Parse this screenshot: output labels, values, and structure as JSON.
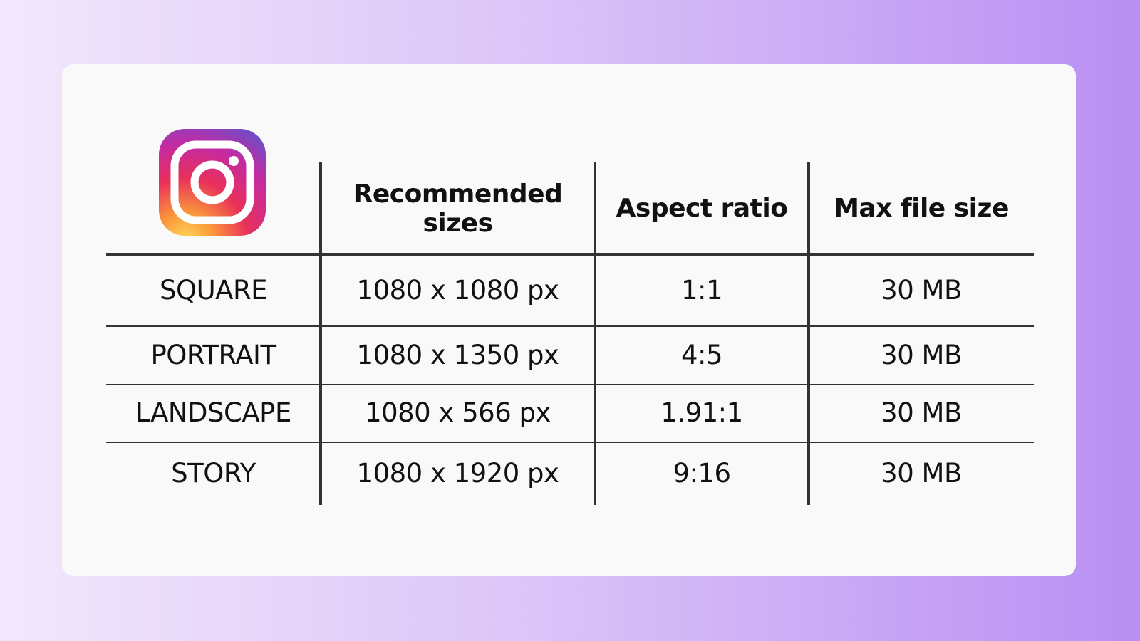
{
  "table": {
    "headers": [
      "Recommended sizes",
      "Aspect ratio",
      "Max file size"
    ],
    "rows": [
      [
        "SQUARE",
        "1080 x 1080 px",
        "1:1",
        "30 MB"
      ],
      [
        "PORTRAIT",
        "1080 x 1350 px",
        "4:5",
        "30 MB"
      ],
      [
        "LANDSCAPE",
        "1080 x 566 px",
        "1.91:1",
        "30 MB"
      ],
      [
        "STORY",
        "1080 x 1920 px",
        "9:16",
        "30 MB"
      ]
    ]
  }
}
